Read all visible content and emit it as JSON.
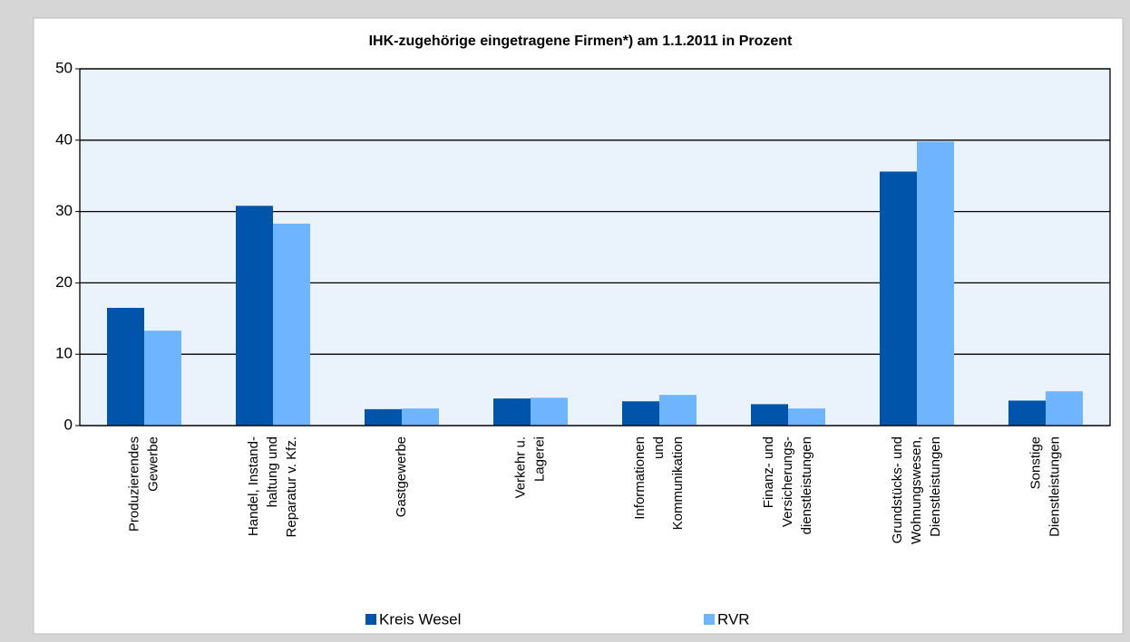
{
  "chart_data": {
    "type": "bar",
    "title": "IHK-zugehörige eingetragene Firmen*) am 1.1.2011 in Prozent",
    "categories": [
      [
        "Produzierendes",
        "Gewerbe"
      ],
      [
        "Handel, Instand-",
        "haltung und",
        "Reparatur v. Kfz."
      ],
      [
        "Gastgewerbe"
      ],
      [
        "Verkehr u.",
        "Lagerei"
      ],
      [
        "Informationen",
        "und",
        "Kommunikation"
      ],
      [
        "Finanz- und",
        "Versicherungs-",
        "dienstleistungen"
      ],
      [
        "Grundstücks- und",
        "Wohnungswesen,",
        "Dienstleistungen"
      ],
      [
        "Sonstige",
        "Dienstleistungen"
      ]
    ],
    "series": [
      {
        "name": "Kreis Wesel",
        "color": "#0055aa",
        "values": [
          16.5,
          30.8,
          2.3,
          3.8,
          3.4,
          3.0,
          35.6,
          3.5
        ]
      },
      {
        "name": "RVR",
        "color": "#6fb4ff",
        "values": [
          13.3,
          28.3,
          2.4,
          3.9,
          4.3,
          2.4,
          39.8,
          4.8
        ]
      }
    ],
    "ylim": [
      0,
      50
    ],
    "yticks": [
      0,
      10,
      20,
      30,
      40,
      50
    ],
    "grid": true
  }
}
